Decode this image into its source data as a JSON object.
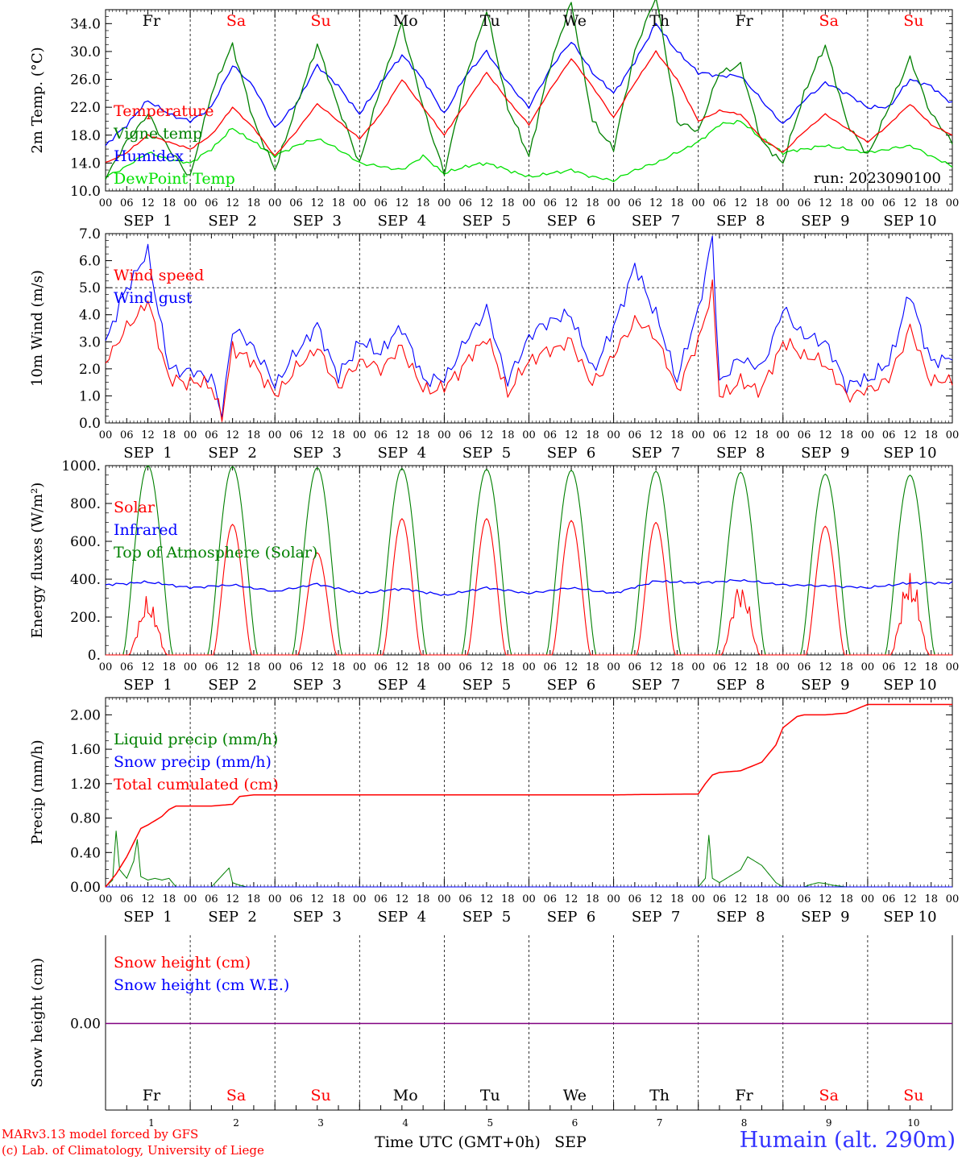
{
  "run_label": "run: 2023090100",
  "hour_ticks": [
    "00",
    "06",
    "12",
    "18"
  ],
  "date_labels": [
    "SEP  1",
    "SEP  2",
    "SEP  3",
    "SEP  4",
    "SEP  5",
    "SEP  6",
    "SEP  7",
    "SEP  8",
    "SEP  9",
    "SEP 10"
  ],
  "weekdays": [
    "Fr",
    "Sa",
    "Su",
    "Mo",
    "Tu",
    "We",
    "Th",
    "Fr",
    "Sa",
    "Su"
  ],
  "day_numbers": [
    "1",
    "2",
    "3",
    "4",
    "5",
    "6",
    "7",
    "8",
    "9",
    "10"
  ],
  "bottom_axis_label": "Time UTC (GMT+0h)",
  "bottom_month_label": "SEP",
  "credits": {
    "line1": "MARv3.13 model forced by GFS",
    "line2": "(c) Lab. of Climatology, University of Liege"
  },
  "station": "Humain (alt. 290m)",
  "colors": {
    "red": "#ff0000",
    "green": "#008000",
    "blue": "#0000ff",
    "light_green": "#00e000",
    "weekend": "#ff0000",
    "weekday": "#000000",
    "snow_line": "#800080"
  },
  "chart_data": [
    {
      "type": "line",
      "ylabel": "2m Temp. (°C)",
      "ylim": [
        10.0,
        36.0
      ],
      "yticks": [
        "10.0",
        "14.0",
        "18.0",
        "22.0",
        "26.0",
        "30.0",
        "34.0"
      ],
      "x_unit": "hours since 2023-09-01 00 UTC",
      "xlim": [
        0,
        240
      ],
      "series": [
        {
          "name": "Temperature",
          "color": "#ff0000",
          "x": [
            0,
            6,
            12,
            18,
            24,
            30,
            36,
            42,
            48,
            54,
            60,
            66,
            72,
            78,
            84,
            90,
            96,
            102,
            108,
            114,
            120,
            126,
            132,
            138,
            144,
            150,
            156,
            162,
            168,
            174,
            180,
            186,
            192,
            198,
            204,
            210,
            216,
            222,
            228,
            234,
            240
          ],
          "values": [
            14.0,
            15.5,
            18.0,
            17.0,
            16.0,
            18.0,
            22.0,
            19.0,
            15.0,
            18.5,
            22.5,
            20.0,
            17.5,
            21.0,
            26.0,
            22.0,
            18.0,
            22.5,
            27.0,
            23.0,
            19.5,
            24.5,
            29.0,
            25.0,
            20.5,
            25.5,
            30.0,
            26.0,
            20.0,
            21.5,
            21.0,
            17.5,
            15.5,
            18.5,
            21.0,
            19.0,
            17.0,
            19.5,
            22.5,
            19.5,
            18.0
          ]
        },
        {
          "name": "Vigne temp",
          "color": "#008000",
          "x": [
            0,
            6,
            12,
            18,
            24,
            30,
            36,
            42,
            48,
            54,
            60,
            66,
            72,
            78,
            84,
            90,
            96,
            102,
            108,
            114,
            120,
            126,
            132,
            138,
            144,
            150,
            156,
            162,
            168,
            174,
            180,
            186,
            192,
            198,
            204,
            210,
            216,
            222,
            228,
            234,
            240
          ],
          "values": [
            12.0,
            17.0,
            21.0,
            16.0,
            12.0,
            24.0,
            31.0,
            20.0,
            13.0,
            22.0,
            31.0,
            22.0,
            14.0,
            25.0,
            34.0,
            22.0,
            12.5,
            26.0,
            36.0,
            22.0,
            15.0,
            28.0,
            37.0,
            20.0,
            16.0,
            30.0,
            38.0,
            20.0,
            18.5,
            27.0,
            28.0,
            17.0,
            14.0,
            24.0,
            31.0,
            20.0,
            15.0,
            22.0,
            29.0,
            21.0,
            17.0
          ]
        },
        {
          "name": "Humidex",
          "color": "#0000ff",
          "x": [
            0,
            6,
            12,
            18,
            24,
            30,
            36,
            42,
            48,
            54,
            60,
            66,
            72,
            78,
            84,
            90,
            96,
            102,
            108,
            114,
            120,
            126,
            132,
            138,
            144,
            150,
            156,
            162,
            168,
            174,
            180,
            186,
            192,
            198,
            204,
            210,
            216,
            222,
            228,
            234,
            240
          ],
          "values": [
            16.5,
            19.5,
            23.0,
            21.0,
            20.0,
            22.0,
            28.0,
            25.0,
            19.0,
            22.5,
            28.0,
            25.0,
            21.0,
            25.5,
            29.5,
            26.0,
            21.0,
            26.5,
            30.0,
            25.5,
            22.0,
            27.5,
            31.5,
            27.0,
            24.0,
            28.5,
            34.0,
            30.0,
            27.0,
            26.5,
            26.5,
            23.0,
            19.5,
            23.0,
            25.5,
            24.0,
            22.0,
            22.0,
            26.0,
            25.0,
            22.5
          ]
        },
        {
          "name": "DewPoint Temp",
          "color": "#00e000",
          "x": [
            0,
            6,
            12,
            18,
            24,
            30,
            36,
            42,
            48,
            54,
            60,
            66,
            72,
            78,
            84,
            90,
            96,
            102,
            108,
            114,
            120,
            126,
            132,
            138,
            144,
            150,
            156,
            162,
            168,
            174,
            180,
            186,
            192,
            198,
            204,
            210,
            216,
            222,
            228,
            234,
            240
          ],
          "values": [
            12.0,
            13.5,
            15.5,
            14.5,
            14.0,
            16.0,
            19.0,
            17.0,
            15.0,
            16.5,
            17.5,
            16.0,
            14.0,
            13.5,
            13.0,
            15.0,
            12.5,
            13.5,
            14.0,
            13.0,
            12.0,
            12.5,
            13.0,
            12.0,
            11.5,
            13.0,
            14.0,
            15.5,
            17.0,
            19.5,
            20.0,
            17.5,
            15.5,
            16.0,
            16.5,
            16.0,
            15.5,
            16.0,
            16.5,
            15.0,
            13.5
          ]
        }
      ]
    },
    {
      "type": "line",
      "ylabel": "10m Wind (m/s)",
      "ylim": [
        0.0,
        7.0
      ],
      "yticks": [
        "0.0",
        "1.0",
        "2.0",
        "3.0",
        "4.0",
        "5.0",
        "6.0",
        "7.0"
      ],
      "reference_line": 5.0,
      "x_unit": "hours since 2023-09-01 00 UTC",
      "xlim": [
        0,
        240
      ],
      "series": [
        {
          "name": "Wind speed",
          "color": "#ff0000",
          "x": [
            0,
            6,
            12,
            18,
            24,
            30,
            33,
            36,
            42,
            48,
            54,
            60,
            66,
            72,
            78,
            84,
            90,
            96,
            102,
            108,
            114,
            120,
            126,
            132,
            138,
            144,
            150,
            156,
            162,
            168,
            172,
            174,
            180,
            186,
            192,
            198,
            204,
            210,
            216,
            222,
            228,
            234,
            240
          ],
          "values": [
            2.3,
            3.5,
            4.5,
            1.6,
            1.5,
            1.4,
            0.2,
            2.8,
            2.2,
            1.0,
            2.0,
            2.8,
            1.3,
            2.3,
            2.0,
            2.8,
            1.2,
            1.3,
            2.2,
            3.2,
            1.1,
            2.3,
            2.7,
            3.0,
            1.4,
            2.5,
            3.8,
            3.2,
            1.2,
            3.0,
            5.0,
            1.0,
            1.5,
            1.2,
            3.0,
            2.5,
            2.2,
            1.0,
            1.2,
            1.6,
            3.5,
            1.5,
            1.6
          ]
        },
        {
          "name": "Wind gust",
          "color": "#0000ff",
          "x": [
            0,
            6,
            12,
            18,
            24,
            30,
            33,
            36,
            42,
            48,
            54,
            60,
            66,
            72,
            78,
            84,
            90,
            96,
            102,
            108,
            114,
            120,
            126,
            132,
            138,
            144,
            150,
            156,
            162,
            168,
            172,
            174,
            180,
            186,
            192,
            198,
            204,
            210,
            216,
            222,
            228,
            234,
            240
          ],
          "values": [
            3.0,
            5.0,
            6.3,
            2.0,
            1.9,
            1.7,
            0.3,
            3.5,
            2.8,
            1.4,
            2.6,
            3.6,
            1.7,
            3.0,
            2.6,
            3.6,
            1.6,
            1.6,
            3.0,
            4.2,
            1.5,
            3.2,
            3.8,
            4.0,
            1.9,
            3.5,
            5.8,
            4.0,
            1.6,
            4.2,
            6.8,
            1.5,
            2.4,
            2.0,
            4.2,
            3.2,
            3.0,
            1.4,
            1.6,
            2.2,
            4.8,
            2.2,
            2.5
          ]
        }
      ]
    },
    {
      "type": "line",
      "ylabel": "Energy fluxes (W/m²)",
      "ylim": [
        0,
        1000
      ],
      "yticks": [
        "0.",
        "200.",
        "400.",
        "600.",
        "800.",
        "1000."
      ],
      "x_unit": "hours since 2023-09-01 00 UTC",
      "xlim": [
        0,
        240
      ],
      "daily_solar_peak": [
        320,
        690,
        540,
        720,
        720,
        710,
        700,
        420,
        680,
        460
      ],
      "daily_toa_peak": [
        1000,
        995,
        990,
        985,
        980,
        975,
        970,
        965,
        955,
        950
      ],
      "series": [
        {
          "name": "Solar",
          "color": "#ff0000"
        },
        {
          "name": "Infrared",
          "color": "#0000ff",
          "x": [
            0,
            12,
            24,
            36,
            48,
            60,
            72,
            84,
            96,
            108,
            120,
            132,
            144,
            156,
            168,
            180,
            192,
            204,
            216,
            228,
            240
          ],
          "values": [
            370,
            385,
            355,
            370,
            335,
            375,
            325,
            350,
            315,
            355,
            325,
            355,
            325,
            390,
            380,
            395,
            370,
            365,
            355,
            380,
            380
          ]
        },
        {
          "name": "Top of Atmosphere (Solar)",
          "color": "#008000"
        }
      ]
    },
    {
      "type": "line",
      "ylabel": "Precip (mm/h)",
      "ylim": [
        0.0,
        2.2
      ],
      "yticks": [
        "0.00",
        "0.40",
        "0.80",
        "1.20",
        "1.60",
        "2.00"
      ],
      "x_unit": "hours since 2023-09-01 00 UTC",
      "xlim": [
        0,
        240
      ],
      "series": [
        {
          "name": "Liquid precip (mm/h)",
          "color": "#008000",
          "x": [
            0,
            2,
            3,
            4,
            6,
            8,
            9,
            10,
            12,
            14,
            16,
            18,
            20,
            30,
            35,
            36,
            38,
            40,
            168,
            170,
            171,
            172,
            174,
            176,
            178,
            180,
            182,
            184,
            186,
            188,
            190,
            192,
            198,
            200,
            202,
            204,
            206,
            210
          ],
          "values": [
            0.0,
            0.08,
            0.65,
            0.2,
            0.1,
            0.3,
            0.55,
            0.12,
            0.08,
            0.1,
            0.08,
            0.1,
            0.0,
            0.0,
            0.22,
            0.05,
            0.02,
            0.0,
            0.0,
            0.1,
            0.6,
            0.1,
            0.05,
            0.1,
            0.15,
            0.2,
            0.35,
            0.3,
            0.25,
            0.15,
            0.05,
            0.0,
            0.0,
            0.03,
            0.05,
            0.04,
            0.02,
            0.0
          ]
        },
        {
          "name": "Snow precip (mm/h)",
          "color": "#0000ff",
          "x": [
            0,
            240
          ],
          "values": [
            0,
            0
          ]
        },
        {
          "name": "Total cumulated (cm)",
          "color": "#ff0000",
          "x": [
            0,
            3,
            6,
            10,
            12,
            16,
            18,
            20,
            24,
            30,
            36,
            38,
            42,
            48,
            60,
            72,
            96,
            120,
            144,
            168,
            170,
            172,
            174,
            180,
            186,
            190,
            192,
            196,
            198,
            204,
            210,
            216,
            240
          ],
          "values": [
            0.0,
            0.15,
            0.35,
            0.68,
            0.72,
            0.82,
            0.9,
            0.94,
            0.94,
            0.94,
            0.96,
            1.05,
            1.07,
            1.07,
            1.07,
            1.07,
            1.07,
            1.07,
            1.07,
            1.08,
            1.2,
            1.3,
            1.33,
            1.35,
            1.45,
            1.65,
            1.85,
            1.98,
            2.0,
            2.0,
            2.02,
            2.12,
            2.12
          ]
        }
      ]
    },
    {
      "type": "line",
      "ylabel": "Snow height (cm)",
      "ylim": [
        -1.0,
        1.0
      ],
      "yticks": [
        "0.00"
      ],
      "x_unit": "hours since 2023-09-01 00 UTC",
      "xlim": [
        0,
        240
      ],
      "series": [
        {
          "name": "Snow height (cm)",
          "color": "#ff0000",
          "x": [
            0,
            240
          ],
          "values": [
            0,
            0
          ]
        },
        {
          "name": "Snow height (cm W.E.)",
          "color": "#0000ff",
          "x": [
            0,
            240
          ],
          "values": [
            0,
            0
          ]
        }
      ]
    }
  ]
}
